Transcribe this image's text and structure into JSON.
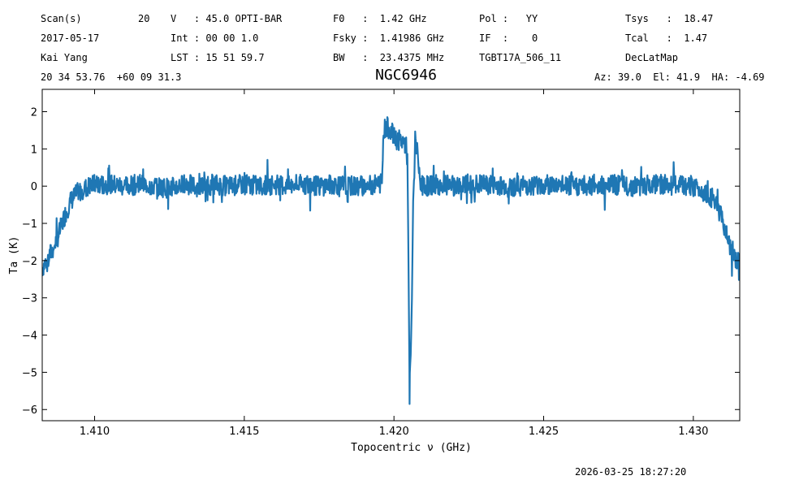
{
  "header": {
    "row1": {
      "scan_label": "Scan(s)",
      "scan_count": "20",
      "v": "V   : 45.0 OPTI-BAR",
      "f0": "F0   :  1.42 GHz",
      "pol": "Pol :   YY",
      "tsys": "Tsys   :  18.47"
    },
    "row2": {
      "date": "2017-05-17",
      "int": "Int : 00 00 1.0",
      "fsky": "Fsky :  1.41986 GHz",
      "if": "IF  :    0",
      "tcal": "Tcal   :  1.47"
    },
    "row3": {
      "observer": "Kai Yang",
      "lst": "LST : 15 51 59.7",
      "bw": "BW   :  23.4375 MHz",
      "project": "TGBT17A_506_11",
      "proc": "DecLatMap"
    },
    "row4": {
      "coords": "20 34 53.76  +60 09 31.3",
      "azel": "Az: 39.0  El: 41.9  HA: -4.69"
    }
  },
  "footer": {
    "timestamp": "2026-03-25 18:27:20"
  },
  "chart_data": {
    "type": "line",
    "title": "NGC6946",
    "xlabel": "Topocentric ν (GHz)",
    "ylabel": "Ta (K)",
    "xlim": [
      1.40825,
      1.43155
    ],
    "ylim": [
      -6.3,
      2.6
    ],
    "xticks": [
      1.41,
      1.415,
      1.42,
      1.425,
      1.43
    ],
    "xtick_labels": [
      "1.410",
      "1.415",
      "1.420",
      "1.425",
      "1.430"
    ],
    "yticks": [
      2,
      1,
      0,
      -1,
      -2,
      -3,
      -4,
      -5,
      -6
    ],
    "ytick_labels": [
      "2",
      "1",
      "0",
      "−1",
      "−2",
      "−3",
      "−4",
      "−5",
      "−6"
    ],
    "color": "#1f77b4",
    "grid": false,
    "legend": "none",
    "series": [
      {
        "x": [
          1.40825,
          1.4084,
          1.4086,
          1.4088,
          1.409,
          1.4092,
          1.4094,
          1.4096,
          1.4098,
          1.41,
          1.4105,
          1.411,
          1.4115,
          1.412,
          1.4125,
          1.413,
          1.4135,
          1.414,
          1.4145,
          1.415,
          1.4155,
          1.416,
          1.4165,
          1.417,
          1.4175,
          1.418,
          1.4185,
          1.419,
          1.4194,
          1.4196,
          1.41965,
          1.41975,
          1.4199,
          1.42,
          1.4201,
          1.4203,
          1.4204,
          1.42045,
          1.42048,
          1.42052,
          1.42056,
          1.4206,
          1.42064,
          1.42068,
          1.42072,
          1.42078,
          1.42085,
          1.42095,
          1.4211,
          1.4213,
          1.422,
          1.423,
          1.424,
          1.425,
          1.426,
          1.427,
          1.428,
          1.429,
          1.43,
          1.4305,
          1.4308,
          1.431,
          1.4312,
          1.4314,
          1.43155
        ],
        "y": [
          -2.2,
          -2.0,
          -1.7,
          -1.3,
          -0.8,
          -0.4,
          -0.2,
          -0.1,
          0.0,
          0.05,
          0.05,
          0.0,
          0.05,
          0.0,
          -0.05,
          0.05,
          0.0,
          0.05,
          0.0,
          0.05,
          0.0,
          0.05,
          0.0,
          0.05,
          0.0,
          0.05,
          0.0,
          0.0,
          0.05,
          0.1,
          1.5,
          1.6,
          1.5,
          1.3,
          1.25,
          1.2,
          1.1,
          0.7,
          -1.5,
          -5.2,
          -4.5,
          -3.0,
          -0.4,
          0.4,
          1.2,
          1.0,
          0.2,
          0.0,
          0.0,
          0.05,
          0.0,
          0.05,
          0.0,
          0.05,
          0.0,
          0.05,
          0.0,
          0.05,
          0.0,
          -0.2,
          -0.5,
          -1.0,
          -1.6,
          -2.0,
          -2.1
        ]
      }
    ]
  }
}
